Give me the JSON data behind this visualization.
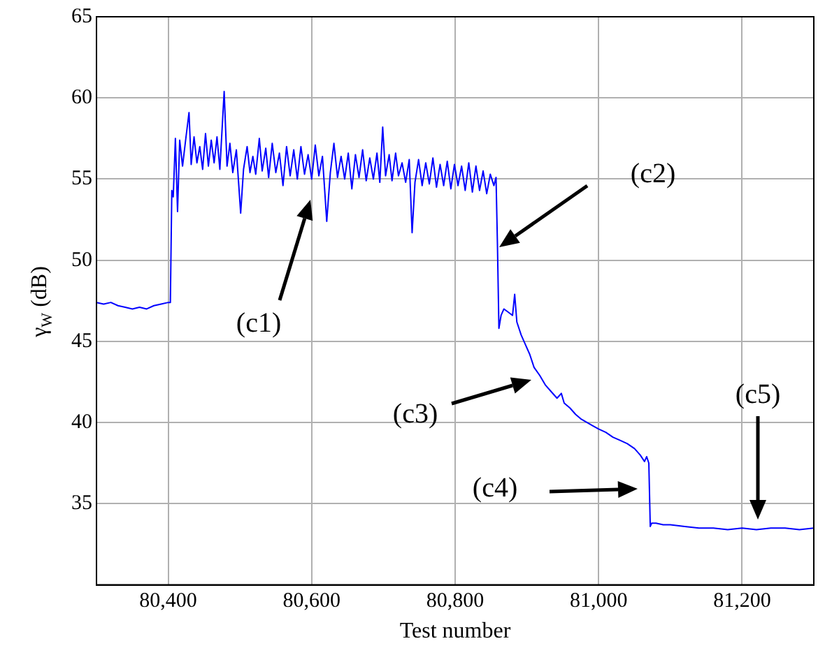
{
  "chart_data": {
    "type": "line",
    "xlabel": "Test number",
    "ylabel": "γ$_{W}$ (dB)",
    "xlim": [
      80300,
      81300
    ],
    "ylim": [
      30,
      65
    ],
    "xticks": [
      {
        "value": 80400,
        "label": "80,400"
      },
      {
        "value": 80600,
        "label": "80,600"
      },
      {
        "value": 80800,
        "label": "80,800"
      },
      {
        "value": 81000,
        "label": "81,000"
      },
      {
        "value": 81200,
        "label": "81,200"
      }
    ],
    "yticks": [
      35,
      40,
      45,
      50,
      55,
      60,
      65
    ],
    "grid": true,
    "legend": false,
    "marker": "none",
    "line_style": "solid",
    "annotations": [
      "(c1)",
      "(c2)",
      "(c3)",
      "(c4)",
      "(c5)"
    ],
    "series": [
      {
        "color": "#0000ff",
        "x": [
          80300,
          80310,
          80320,
          80330,
          80340,
          80350,
          80360,
          80370,
          80380,
          80390,
          80400,
          80403,
          80405,
          80407,
          80410,
          80413,
          80416,
          80420,
          80424,
          80429,
          80432,
          80436,
          80440,
          80444,
          80448,
          80452,
          80456,
          80460,
          80464,
          80468,
          80472,
          80478,
          80482,
          80486,
          80490,
          80495,
          80501,
          80505,
          80510,
          80514,
          80518,
          80522,
          80527,
          80531,
          80536,
          80540,
          80545,
          80550,
          80555,
          80560,
          80565,
          80570,
          80575,
          80580,
          80585,
          80590,
          80595,
          80600,
          80605,
          80610,
          80615,
          80621,
          80626,
          80631,
          80636,
          80641,
          80646,
          80651,
          80656,
          80661,
          80666,
          80671,
          80676,
          80681,
          80686,
          80691,
          80695,
          80699,
          80703,
          80708,
          80712,
          80717,
          80721,
          80726,
          80731,
          80736,
          80740,
          80744,
          80749,
          80754,
          80759,
          80764,
          80769,
          80774,
          80779,
          80784,
          80789,
          80794,
          80799,
          80804,
          80809,
          80814,
          80819,
          80824,
          80829,
          80834,
          80839,
          80844,
          80849,
          80854,
          80857,
          80859,
          80861,
          80864,
          80868,
          80874,
          80880,
          80883,
          80886,
          80892,
          80898,
          80904,
          80910,
          80918,
          80926,
          80934,
          80942,
          80948,
          80952,
          80960,
          80968,
          80976,
          80984,
          80992,
          81000,
          81010,
          81020,
          81030,
          81040,
          81050,
          81058,
          81064,
          81067,
          81070,
          81072,
          81074,
          81080,
          81090,
          81100,
          81120,
          81140,
          81160,
          81180,
          81200,
          81220,
          81240,
          81260,
          81280,
          81300
        ],
        "values": [
          47.4,
          47.3,
          47.4,
          47.2,
          47.1,
          47.0,
          47.1,
          47.0,
          47.2,
          47.3,
          47.4,
          47.4,
          54.3,
          53.9,
          57.5,
          53.0,
          57.4,
          55.8,
          57.3,
          59.1,
          55.9,
          57.6,
          56.0,
          57.0,
          55.6,
          57.8,
          55.8,
          57.4,
          56.0,
          57.6,
          55.6,
          60.4,
          55.8,
          57.2,
          55.4,
          56.8,
          52.9,
          55.6,
          57.0,
          55.4,
          56.4,
          55.3,
          57.5,
          55.5,
          56.9,
          55.1,
          57.2,
          55.4,
          56.6,
          54.6,
          57.0,
          55.2,
          56.8,
          55.0,
          57.0,
          55.3,
          56.5,
          55.0,
          57.1,
          55.2,
          56.4,
          52.4,
          55.4,
          57.2,
          55.1,
          56.4,
          55.0,
          56.6,
          54.4,
          56.5,
          55.1,
          56.8,
          54.9,
          56.3,
          55.0,
          56.6,
          54.8,
          58.2,
          55.2,
          56.5,
          54.9,
          56.6,
          55.2,
          56.0,
          54.8,
          56.2,
          51.7,
          54.8,
          56.2,
          54.6,
          56.0,
          54.7,
          56.3,
          54.5,
          55.9,
          54.6,
          56.1,
          54.4,
          55.9,
          54.6,
          55.8,
          54.3,
          56.0,
          54.2,
          55.8,
          54.3,
          55.5,
          54.1,
          55.3,
          54.6,
          55.1,
          50.9,
          45.8,
          46.6,
          47.0,
          46.8,
          46.6,
          47.9,
          46.2,
          45.4,
          44.8,
          44.2,
          43.4,
          42.9,
          42.3,
          41.9,
          41.5,
          41.8,
          41.2,
          40.9,
          40.5,
          40.2,
          40.0,
          39.8,
          39.6,
          39.4,
          39.1,
          38.9,
          38.7,
          38.4,
          38.0,
          37.6,
          37.9,
          37.5,
          33.6,
          33.8,
          33.8,
          33.7,
          33.7,
          33.6,
          33.5,
          33.5,
          33.4,
          33.5,
          33.4,
          33.5,
          33.5,
          33.4,
          33.5
        ]
      }
    ]
  }
}
